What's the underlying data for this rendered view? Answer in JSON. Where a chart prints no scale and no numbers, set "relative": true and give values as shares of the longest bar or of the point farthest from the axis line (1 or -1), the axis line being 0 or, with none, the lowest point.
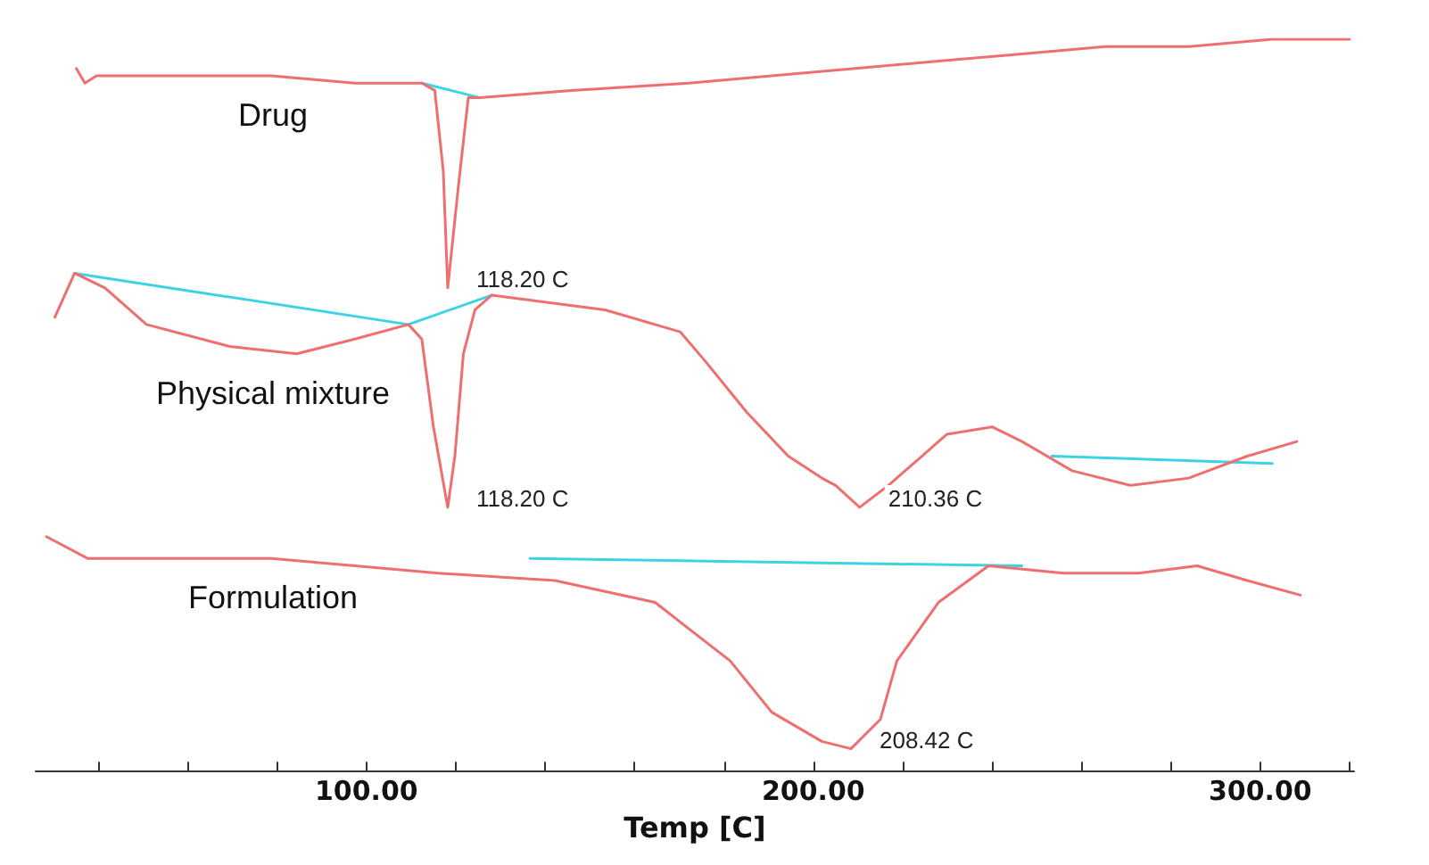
{
  "chart_data": {
    "type": "line",
    "relative": true,
    "xlabel": "Temp [C]",
    "xlim": [
      26,
      321
    ],
    "xticks": [
      {
        "value": 40,
        "label": null
      },
      {
        "value": 60,
        "label": null
      },
      {
        "value": 80,
        "label": null
      },
      {
        "value": 100,
        "label": "100.00"
      },
      {
        "value": 120,
        "label": null
      },
      {
        "value": 140,
        "label": null
      },
      {
        "value": 160,
        "label": null
      },
      {
        "value": 180,
        "label": null
      },
      {
        "value": 200,
        "label": "200.00"
      },
      {
        "value": 220,
        "label": null
      },
      {
        "value": 240,
        "label": null
      },
      {
        "value": 260,
        "label": null
      },
      {
        "value": 280,
        "label": null
      },
      {
        "value": 300,
        "label": "300.00"
      },
      {
        "value": 320,
        "label": null
      }
    ],
    "grid": false,
    "legend": false,
    "marker": "none",
    "series": [
      {
        "name": "Drug",
        "color": "#ee6f6f",
        "x": [
          35.1,
          37.0,
          39.6,
          60.1,
          78.8,
          97.4,
          112.4,
          115.3,
          117.2,
          118.2,
          120.6,
          122.8,
          125.4,
          145.9,
          172.1,
          190.7,
          209.4,
          228.0,
          246.7,
          265.3,
          284.0,
          302.7,
          320
        ],
        "values": [
          0.96,
          0.94,
          0.95,
          0.95,
          0.95,
          0.94,
          0.94,
          0.93,
          0.82,
          0.66,
          0.8,
          0.92,
          0.92,
          0.93,
          0.94,
          0.95,
          0.96,
          0.97,
          0.98,
          0.99,
          0.99,
          1.0,
          1.0
        ]
      },
      {
        "name": "Physical mixture",
        "color": "#ee6f6f",
        "x": [
          30.3,
          34.7,
          41.5,
          50.8,
          69.4,
          84.4,
          97.4,
          109.4,
          112.4,
          115.0,
          118.2,
          119.8,
          121.7,
          124.3,
          128.0,
          153.4,
          170.2,
          175.8,
          185.1,
          194.4,
          201.9,
          205.0,
          210.36,
          216.8,
          224.3,
          229.9,
          240.0,
          246.7,
          257.9,
          270.9,
          284.0,
          297.1,
          308.2
        ],
        "values": [
          0.62,
          0.68,
          0.66,
          0.61,
          0.58,
          0.57,
          0.59,
          0.61,
          0.59,
          0.47,
          0.36,
          0.43,
          0.57,
          0.63,
          0.65,
          0.63,
          0.6,
          0.56,
          0.49,
          0.43,
          0.4,
          0.39,
          0.36,
          0.39,
          0.43,
          0.46,
          0.47,
          0.45,
          0.41,
          0.39,
          0.4,
          0.43,
          0.45
        ]
      },
      {
        "name": "Formulation",
        "color": "#ee6f6f",
        "x": [
          28.4,
          37.7,
          78.8,
          116.1,
          142.2,
          164.6,
          181.4,
          190.7,
          201.9,
          208.42,
          215.0,
          218.7,
          228.0,
          239.2,
          256.0,
          272.8,
          285.9,
          297.1,
          309.0
        ],
        "values": [
          0.32,
          0.29,
          0.29,
          0.27,
          0.26,
          0.23,
          0.15,
          0.08,
          0.04,
          0.03,
          0.07,
          0.15,
          0.23,
          0.28,
          0.27,
          0.27,
          0.28,
          0.26,
          0.24
        ]
      },
      {
        "color": "#3dd3e3",
        "x": [
          112.4,
          125.4
        ],
        "values": [
          0.94,
          0.92
        ]
      },
      {
        "color": "#3dd3e3",
        "x": [
          34.7,
          109.4,
          128.0
        ],
        "values": [
          0.68,
          0.61,
          0.65
        ]
      },
      {
        "color": "#3dd3e3",
        "x": [
          253.4,
          302.7
        ],
        "values": [
          0.43,
          0.42
        ]
      },
      {
        "color": "#3dd3e3",
        "x": [
          136.6,
          246.7
        ],
        "values": [
          0.29,
          0.28
        ]
      }
    ],
    "annotations": [
      {
        "text": "118.20 C",
        "x": 118.2,
        "y": 0.66
      },
      {
        "text": "118.20 C",
        "x": 118.2,
        "y": 0.36
      },
      {
        "text": "210.36 C",
        "x": 210.36,
        "y": 0.36
      },
      {
        "text": "208.42 C",
        "x": 208.42,
        "y": 0.03
      }
    ]
  }
}
